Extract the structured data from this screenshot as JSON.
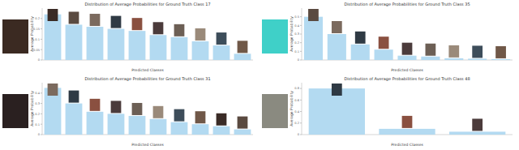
{
  "chart_data": [
    {
      "type": "bar",
      "title": "Distribution of Average Probabilities for Ground Truth Class 17",
      "x_label": "Predicted Classes",
      "y_label": "Average Probability",
      "categories": [
        null,
        null,
        null,
        null,
        null,
        null,
        null,
        null,
        null,
        null
      ],
      "values": [
        0.22,
        0.17,
        0.16,
        0.15,
        0.14,
        0.12,
        0.11,
        0.09,
        0.07,
        0.03
      ],
      "color": "#b3daf1",
      "ylim": [
        0,
        0.25
      ],
      "yticks": [
        0,
        0.05,
        0.1,
        0.15,
        0.2
      ],
      "grid": false
    },
    {
      "type": "bar",
      "title": "Distribution of Average Probabilities for Ground Truth Class 35",
      "x_label": "Predicted Classes",
      "y_label": "Average Probability",
      "categories": [
        null,
        null,
        null,
        null,
        null,
        null,
        null,
        null,
        null
      ],
      "values": [
        0.5,
        0.3,
        0.18,
        0.12,
        0.05,
        0.04,
        0.02,
        0.015,
        0.01
      ],
      "color": "#b3daf1",
      "ylim": [
        0,
        0.6
      ],
      "yticks": [
        0,
        0.1,
        0.2,
        0.3,
        0.4,
        0.5
      ],
      "grid": false
    },
    {
      "type": "bar",
      "title": "Distribution of Average Probabilities for Ground Truth Class 31",
      "x_label": "Predicted Classes",
      "y_label": "Average Probability",
      "categories": [
        null,
        null,
        null,
        null,
        null,
        null,
        null,
        null,
        null,
        null
      ],
      "values": [
        0.45,
        0.3,
        0.22,
        0.2,
        0.18,
        0.15,
        0.12,
        0.1,
        0.08,
        0.05
      ],
      "color": "#b3daf1",
      "ylim": [
        0,
        0.5
      ],
      "yticks": [
        0,
        0.1,
        0.2,
        0.3,
        0.4
      ],
      "grid": false
    },
    {
      "type": "bar",
      "title": "Distribution of Average Probabilities for Ground Truth Class 48",
      "x_label": "Predicted Classes",
      "y_label": "Average Probability",
      "categories": [
        null,
        null,
        null
      ],
      "values": [
        0.8,
        0.1,
        0.05
      ],
      "color": "#b3daf1",
      "ylim": [
        0,
        0.9
      ],
      "yticks": [
        0,
        0.2,
        0.4,
        0.6,
        0.8
      ],
      "grid": false
    }
  ]
}
